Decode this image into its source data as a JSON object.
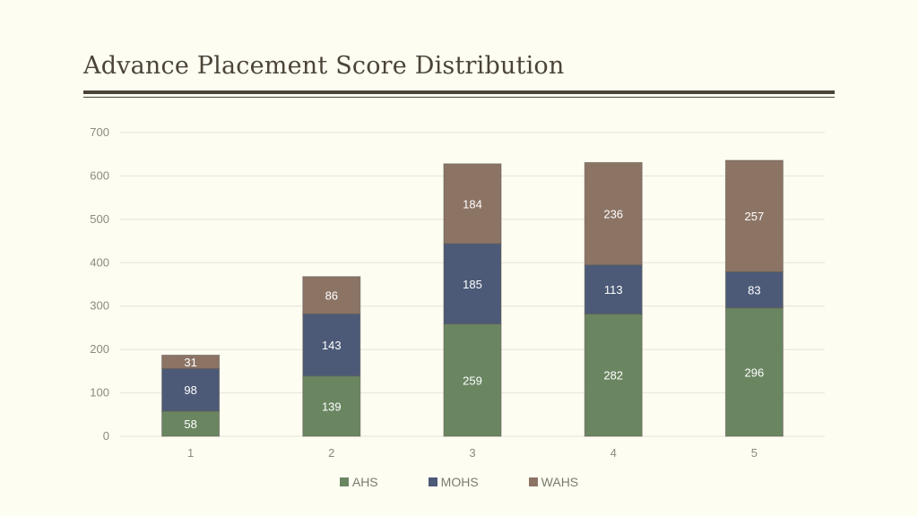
{
  "page": {
    "title": "Advance Placement Score Distribution"
  },
  "chart_data": {
    "type": "bar",
    "stacked": true,
    "categories": [
      "1",
      "2",
      "3",
      "4",
      "5"
    ],
    "ylim": [
      0,
      700
    ],
    "yticks": [
      0,
      100,
      200,
      300,
      400,
      500,
      600,
      700
    ],
    "grid": true,
    "legend_position": "bottom",
    "series": [
      {
        "name": "AHS",
        "color": "#6a8661",
        "values": [
          58,
          139,
          259,
          282,
          296
        ]
      },
      {
        "name": "MOHS",
        "color": "#4c5a77",
        "values": [
          98,
          143,
          185,
          113,
          83
        ]
      },
      {
        "name": "WAHS",
        "color": "#8c7465",
        "values": [
          31,
          86,
          184,
          236,
          257
        ]
      }
    ]
  }
}
